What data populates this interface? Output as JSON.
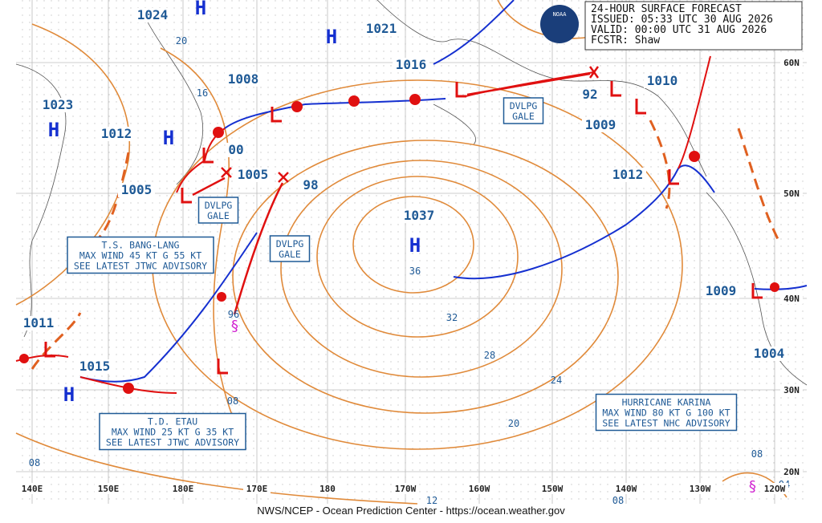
{
  "header": {
    "lines": [
      "24-HOUR SURFACE FORECAST",
      "ISSUED: 05:33 UTC 30 AUG 2026",
      "VALID:  00:00 UTC 31 AUG 2026",
      "FCSTR:  Shaw"
    ]
  },
  "logo": "NOAA",
  "pressures": [
    "1024",
    "1021",
    "1016",
    "1008",
    "1023",
    "1012",
    "1005",
    "1005",
    "00",
    "98",
    "1037",
    "1010",
    "92",
    "1009",
    "1012",
    "1009",
    "1011",
    "1015",
    "1004"
  ],
  "isobar_labels": [
    "20",
    "16",
    "36",
    "32",
    "28",
    "24",
    "20",
    "08",
    "96",
    "08",
    "12",
    "08",
    "08",
    "04"
  ],
  "highs": [
    "H",
    "H",
    "H",
    "H",
    "H",
    "H"
  ],
  "boxes": [
    {
      "lines": [
        "DVLPG",
        "GALE"
      ]
    },
    {
      "lines": [
        "DVLPG",
        "GALE"
      ]
    },
    {
      "lines": [
        "DVLPG",
        "GALE"
      ]
    },
    {
      "lines": [
        "T.S. BANG-LANG",
        "MAX WIND 45 KT G 55 KT",
        "SEE LATEST JTWC ADVISORY"
      ]
    },
    {
      "lines": [
        "T.D. ETAU",
        "MAX WIND 25 KT G 35 KT",
        "SEE LATEST JTWC ADVISORY"
      ]
    },
    {
      "lines": [
        "HURRICANE KARINA",
        "MAX WIND 80 KT G 100 KT",
        "SEE LATEST NHC ADVISORY"
      ]
    }
  ],
  "lon_labels": [
    "140E",
    "150E",
    "180E",
    "170E",
    "180",
    "170W",
    "160W",
    "150W",
    "140W",
    "130W",
    "12OW"
  ],
  "lat_labels": [
    "60N",
    "50N",
    "40N",
    "30N",
    "20N"
  ],
  "footer": "NWS/NCEP - Ocean Prediction Center - https://ocean.weather.gov"
}
